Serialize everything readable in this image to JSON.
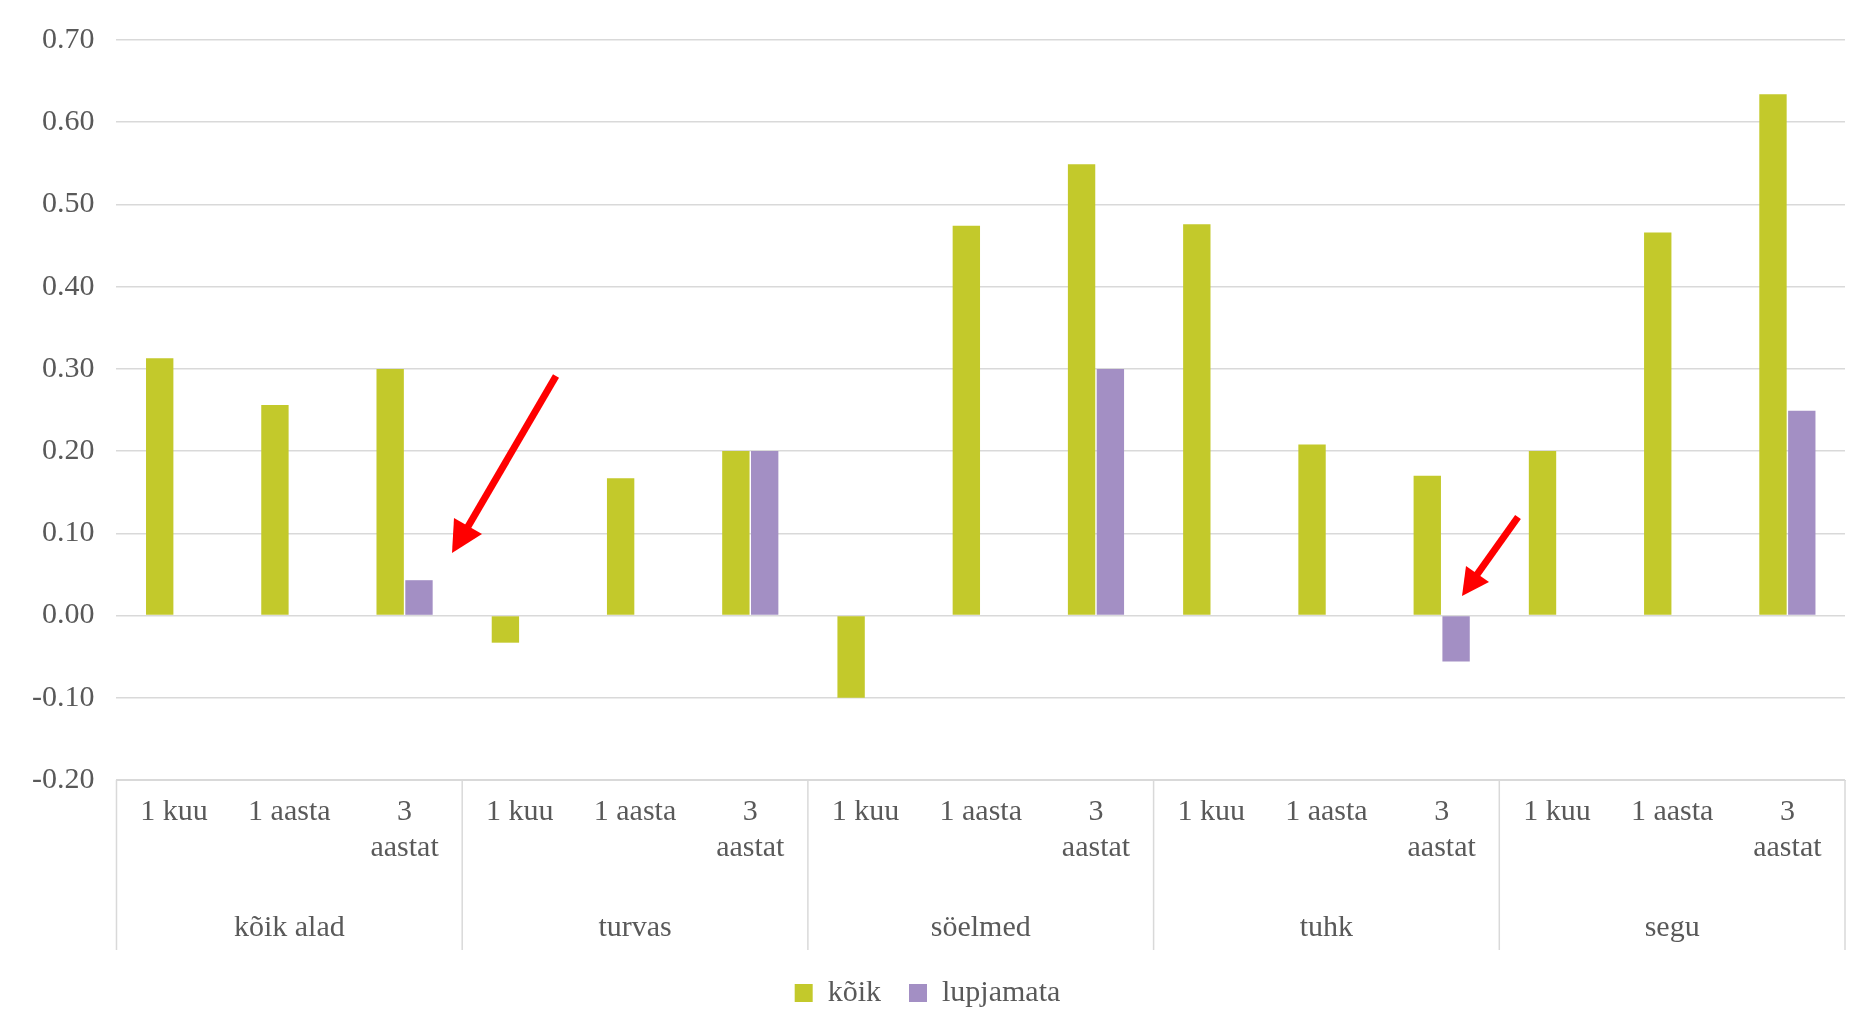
{
  "chart_data": {
    "type": "bar",
    "categories": [
      "1 kuu",
      "1 aasta",
      "3 aastat",
      "1 kuu",
      "1 aasta",
      "3 aastat",
      "1 kuu",
      "1 aasta",
      "3 aastat",
      "1 kuu",
      "1 aasta",
      "3 aastat",
      "1 kuu",
      "1 aasta",
      "3 aastat"
    ],
    "annotations": [
      "kõik alad",
      "turvas",
      "söelmed",
      "tuhk",
      "segu"
    ],
    "series": [
      {
        "name": "kõik",
        "color": "#c3c92b",
        "values": [
          0.313,
          0.256,
          0.3,
          -0.033,
          0.167,
          0.2,
          -0.1,
          0.474,
          0.549,
          0.476,
          0.208,
          0.17,
          0.2,
          0.466,
          0.634
        ]
      },
      {
        "name": "lupjamata",
        "color": "#a38fc4",
        "values": [
          null,
          null,
          0.043,
          null,
          null,
          0.2,
          null,
          null,
          0.3,
          null,
          null,
          -0.056,
          null,
          null,
          0.249
        ]
      }
    ],
    "ylim": [
      -0.2,
      0.7
    ],
    "yticks": [
      {
        "value": -0.2,
        "label": "-0.20"
      },
      {
        "value": -0.1,
        "label": "-0.10"
      },
      {
        "value": 0,
        "label": "0.00"
      },
      {
        "value": 0.1,
        "label": "0.10"
      },
      {
        "value": 0.2,
        "label": "0.20"
      },
      {
        "value": 0.3,
        "label": "0.30"
      },
      {
        "value": 0.4,
        "label": "0.40"
      },
      {
        "value": 0.5,
        "label": "0.50"
      },
      {
        "value": 0.6,
        "label": "0.60"
      },
      {
        "value": 0.7,
        "label": "0.70"
      }
    ],
    "grid": "y",
    "legend": "bottom"
  }
}
